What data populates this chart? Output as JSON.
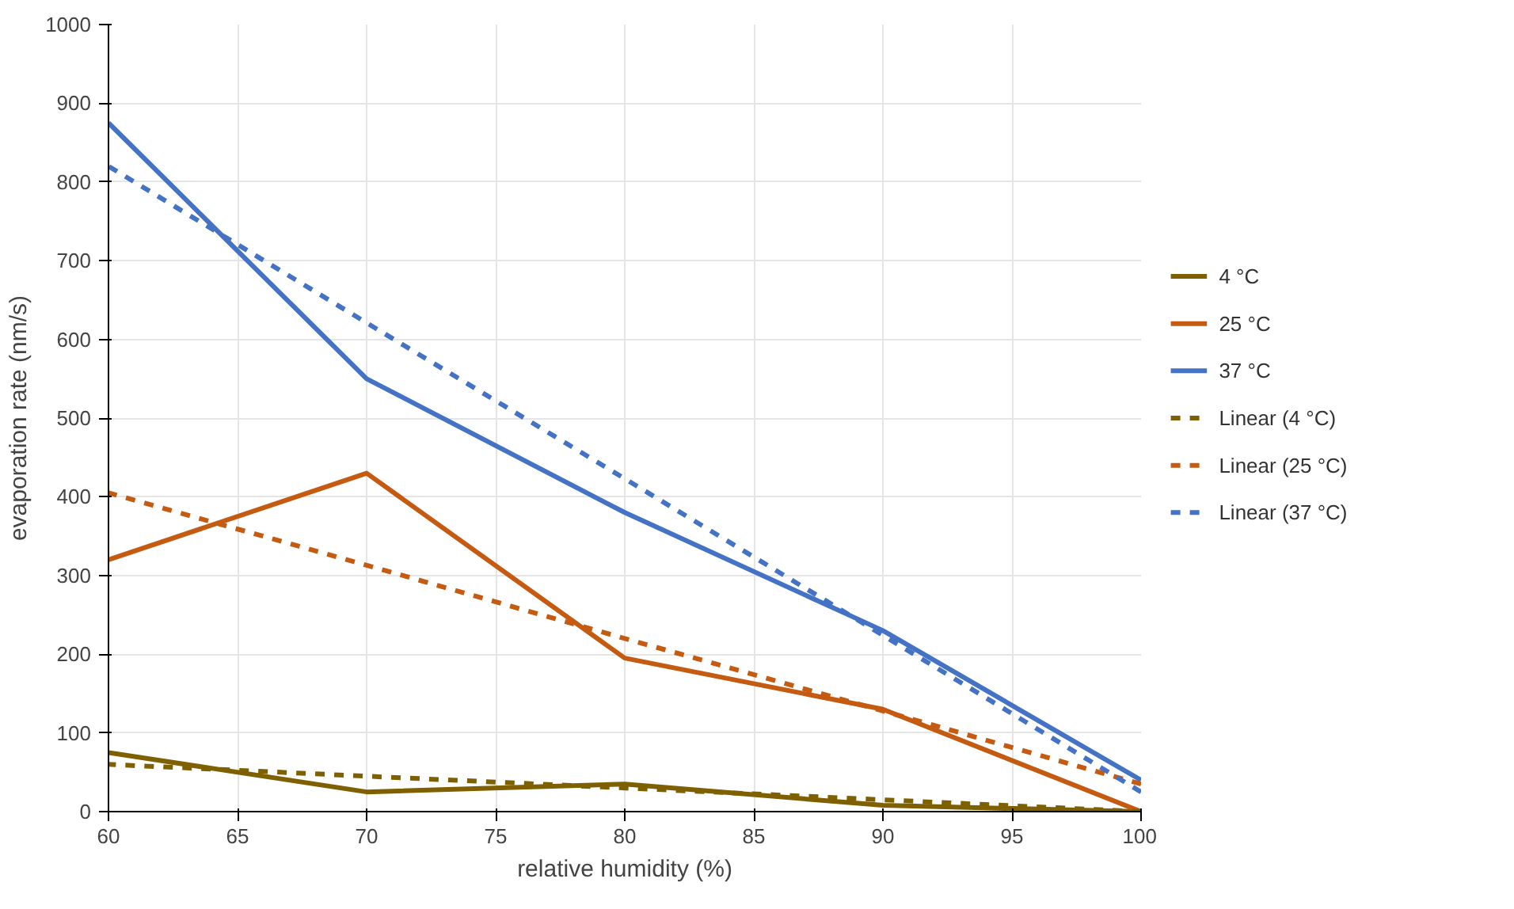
{
  "chart_data": {
    "type": "line",
    "xlabel": "relative humidity (%)",
    "ylabel": "evaporation rate (nm/s)",
    "xlim": [
      60,
      100
    ],
    "xticks": [
      60,
      65,
      70,
      75,
      80,
      85,
      90,
      95,
      100
    ],
    "ylim": [
      0,
      1000
    ],
    "yticks": [
      0,
      100,
      200,
      300,
      400,
      500,
      600,
      700,
      800,
      900,
      1000
    ],
    "x": [
      100,
      90,
      80,
      70,
      60
    ],
    "series": [
      {
        "name": "4 °C",
        "color": "#7f6000",
        "values": [
          0,
          8,
          35,
          25,
          75
        ],
        "line_style": "solid"
      },
      {
        "name": "25 °C",
        "color": "#c55a11",
        "values": [
          0,
          130,
          195,
          430,
          320
        ],
        "line_style": "solid"
      },
      {
        "name": "37 °C",
        "color": "#4472c4",
        "values": [
          40,
          230,
          380,
          550,
          875
        ],
        "line_style": "solid"
      },
      {
        "name": "Linear (4 °C)",
        "color": "#7f6000",
        "values": [
          0,
          15,
          30,
          45,
          60
        ],
        "line_style": "dashed"
      },
      {
        "name": "Linear (25 °C)",
        "color": "#c55a11",
        "values": [
          35,
          128,
          220,
          313,
          405
        ],
        "line_style": "dashed"
      },
      {
        "name": "Linear (37 °C)",
        "color": "#4472c4",
        "values": [
          25,
          224,
          423,
          621,
          820
        ],
        "line_style": "dashed"
      }
    ],
    "grid": true,
    "legend": "right",
    "marker": "none"
  }
}
